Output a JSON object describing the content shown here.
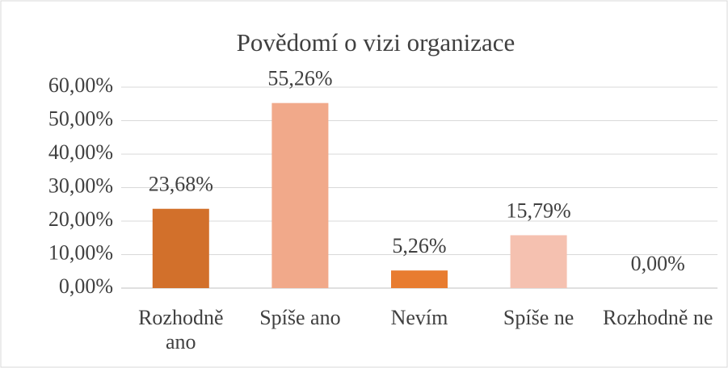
{
  "chart_data": {
    "type": "bar",
    "title": "Povědomí o vizi organizace",
    "categories": [
      "Rozhodně ano",
      "Spíše ano",
      "Nevím",
      "Spíše ne",
      "Rozhodně ne"
    ],
    "values": [
      23.68,
      55.26,
      5.26,
      15.79,
      0
    ],
    "value_labels": [
      "23,68%",
      "55,26%",
      "5,26%",
      "15,79%",
      "0,00%"
    ],
    "colors": [
      "#d2702b",
      "#f1a98a",
      "#e87c30",
      "#f5c1b0",
      "#f8d9cc"
    ],
    "ylim": [
      0,
      60
    ],
    "yticks": [
      {
        "value": 0,
        "label": "0,00%"
      },
      {
        "value": 10,
        "label": "10,00%"
      },
      {
        "value": 20,
        "label": "20,00%"
      },
      {
        "value": 30,
        "label": "30,00%"
      },
      {
        "value": 40,
        "label": "40,00%"
      },
      {
        "value": 50,
        "label": "50,00%"
      },
      {
        "value": 60,
        "label": "60,00%"
      }
    ],
    "grid": true
  }
}
